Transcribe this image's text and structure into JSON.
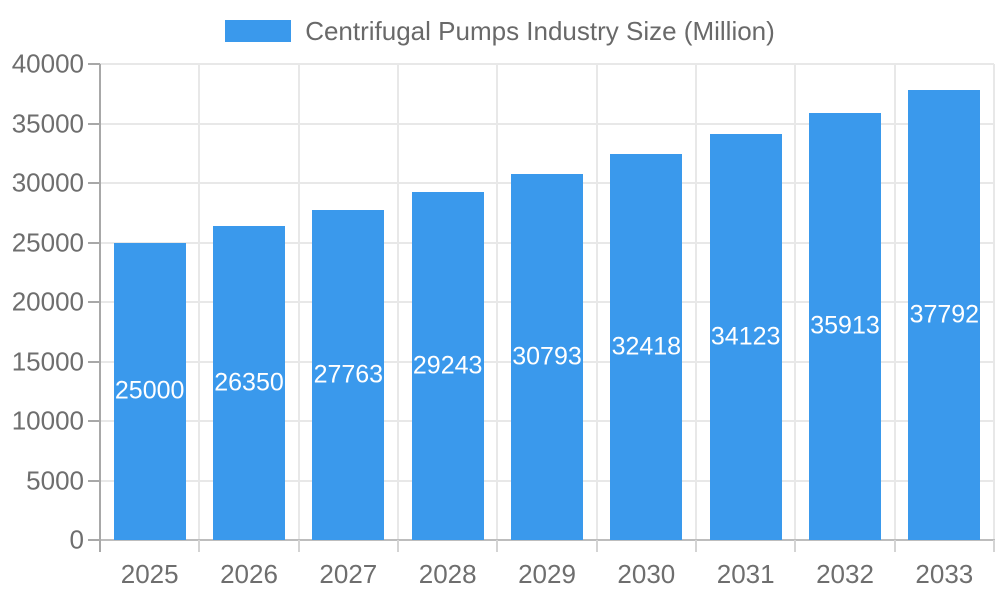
{
  "legend": {
    "label": "Centrifugal Pumps Industry Size (Million)"
  },
  "chart_data": {
    "type": "bar",
    "title": "Centrifugal Pumps Industry Size (Million)",
    "categories": [
      "2025",
      "2026",
      "2027",
      "2028",
      "2029",
      "2030",
      "2031",
      "2032",
      "2033"
    ],
    "values": [
      25000,
      26350,
      27763,
      29243,
      30793,
      32418,
      34123,
      35913,
      37792
    ],
    "series": [
      {
        "name": "Centrifugal Pumps Industry Size (Million)",
        "values": [
          25000,
          26350,
          27763,
          29243,
          30793,
          32418,
          34123,
          35913,
          37792
        ]
      }
    ],
    "xlabel": "",
    "ylabel": "",
    "ylim": [
      0,
      40000
    ],
    "yticks": [
      0,
      5000,
      10000,
      15000,
      20000,
      25000,
      30000,
      35000,
      40000
    ],
    "grid": true,
    "legend_position": "top",
    "bar_labels_visible": true,
    "colors": {
      "bar": "#3a99ec",
      "bar_label": "#ffffff",
      "axis_text": "#6e6e6e",
      "legend_text": "#696969",
      "gridline": "#e8e8e8",
      "axis_line": "#a8a8a8"
    }
  }
}
